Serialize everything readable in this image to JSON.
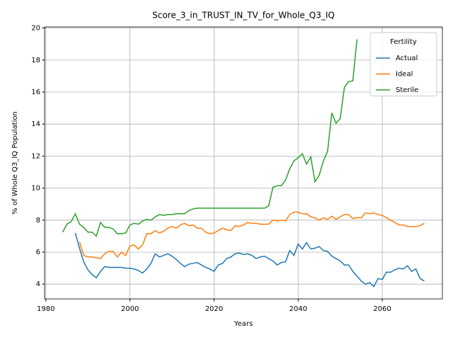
{
  "chart_data": {
    "type": "line",
    "title": "Score_3_in_TRUST_IN_TV_for_Whole_Q3_IQ",
    "xlabel": "Years",
    "ylabel": "% of Whole Q3_IQ Population",
    "legend_title": "Fertility",
    "legend": "upper right",
    "grid": true,
    "xlim": [
      1979.7,
      2074.3
    ],
    "ylim": [
      3.08,
      20.07
    ],
    "xticks": [
      1980,
      2000,
      2020,
      2040,
      2060
    ],
    "yticks": [
      4,
      6,
      8,
      10,
      12,
      14,
      16,
      18,
      20
    ],
    "x": [
      1984,
      1985,
      1986,
      1987,
      1988,
      1989,
      1990,
      1991,
      1992,
      1993,
      1994,
      1995,
      1996,
      1997,
      1998,
      1999,
      2000,
      2001,
      2002,
      2003,
      2004,
      2005,
      2006,
      2007,
      2008,
      2009,
      2010,
      2011,
      2012,
      2013,
      2014,
      2015,
      2016,
      2017,
      2018,
      2019,
      2020,
      2021,
      2022,
      2023,
      2024,
      2025,
      2026,
      2027,
      2028,
      2029,
      2030,
      2031,
      2032,
      2033,
      2034,
      2035,
      2036,
      2037,
      2038,
      2039,
      2040,
      2041,
      2042,
      2043,
      2044,
      2045,
      2046,
      2047,
      2048,
      2049,
      2050,
      2051,
      2052,
      2053,
      2054,
      2055,
      2056,
      2057,
      2058,
      2059,
      2060,
      2061,
      2062,
      2063,
      2064,
      2065,
      2066,
      2067,
      2068,
      2069,
      2070
    ],
    "series": [
      {
        "name": "Actual",
        "color": "#1f77b4",
        "values": [
          null,
          null,
          null,
          7.2,
          6.25,
          5.4,
          4.9,
          4.6,
          4.4,
          4.8,
          5.1,
          5.05,
          5.05,
          5.05,
          5.05,
          5.0,
          5.0,
          4.95,
          4.85,
          4.7,
          4.95,
          5.3,
          5.9,
          5.7,
          5.8,
          5.9,
          5.75,
          5.55,
          5.3,
          5.1,
          5.25,
          5.3,
          5.35,
          5.2,
          5.05,
          4.95,
          4.8,
          5.2,
          5.3,
          5.6,
          5.7,
          5.9,
          5.95,
          5.85,
          5.9,
          5.8,
          5.6,
          5.7,
          5.75,
          5.6,
          5.45,
          5.2,
          5.35,
          5.4,
          6.1,
          5.8,
          6.5,
          6.2,
          6.6,
          6.2,
          6.25,
          6.35,
          6.1,
          6.05,
          5.75,
          5.6,
          5.45,
          5.2,
          5.2,
          4.8,
          4.5,
          4.2,
          4.0,
          4.1,
          3.85,
          4.35,
          4.3,
          4.75,
          4.75,
          4.9,
          5.0,
          4.95,
          5.15,
          4.8,
          4.95,
          4.35,
          4.2
        ]
      },
      {
        "name": "Ideal",
        "color": "#ff7f0e",
        "values": [
          null,
          null,
          null,
          null,
          6.65,
          5.8,
          5.7,
          5.7,
          5.65,
          5.6,
          5.9,
          6.05,
          6.05,
          5.7,
          6.0,
          5.8,
          6.4,
          6.45,
          6.2,
          6.45,
          7.15,
          7.15,
          7.35,
          7.2,
          7.3,
          7.5,
          7.6,
          7.5,
          7.7,
          7.8,
          7.65,
          7.7,
          7.5,
          7.5,
          7.25,
          7.15,
          7.2,
          7.35,
          7.5,
          7.4,
          7.35,
          7.65,
          7.6,
          7.7,
          7.85,
          7.8,
          7.8,
          7.75,
          7.75,
          7.75,
          8.0,
          7.95,
          8.0,
          7.95,
          8.35,
          8.5,
          8.5,
          8.4,
          8.4,
          8.2,
          8.15,
          8.0,
          8.15,
          8.05,
          8.25,
          8.05,
          8.2,
          8.35,
          8.35,
          8.1,
          8.15,
          8.15,
          8.45,
          8.4,
          8.45,
          8.35,
          8.3,
          8.15,
          8.0,
          7.85,
          7.7,
          7.7,
          7.6,
          7.6,
          7.6,
          7.65,
          7.8
        ]
      },
      {
        "name": "Sterile",
        "color": "#2ca02c",
        "values": [
          7.25,
          7.75,
          7.9,
          8.4,
          7.75,
          7.55,
          7.25,
          7.25,
          7.0,
          7.85,
          7.55,
          7.55,
          7.45,
          7.15,
          7.15,
          7.2,
          7.7,
          7.8,
          7.75,
          7.95,
          8.05,
          8.0,
          8.2,
          8.35,
          8.3,
          8.35,
          8.35,
          8.4,
          8.4,
          8.4,
          8.6,
          8.7,
          8.75,
          8.75,
          8.75,
          8.75,
          8.75,
          8.75,
          8.75,
          8.75,
          8.75,
          8.75,
          8.75,
          8.75,
          8.75,
          8.75,
          8.75,
          8.75,
          8.75,
          8.9,
          10.05,
          10.15,
          10.15,
          10.5,
          11.2,
          11.7,
          11.9,
          12.15,
          11.5,
          11.95,
          10.4,
          10.8,
          11.7,
          12.3,
          14.7,
          14.05,
          14.35,
          16.3,
          16.65,
          16.7,
          19.3,
          null,
          null,
          null,
          null,
          null,
          null,
          null,
          null,
          null,
          null,
          null,
          null,
          null,
          null,
          null,
          null
        ]
      }
    ]
  }
}
